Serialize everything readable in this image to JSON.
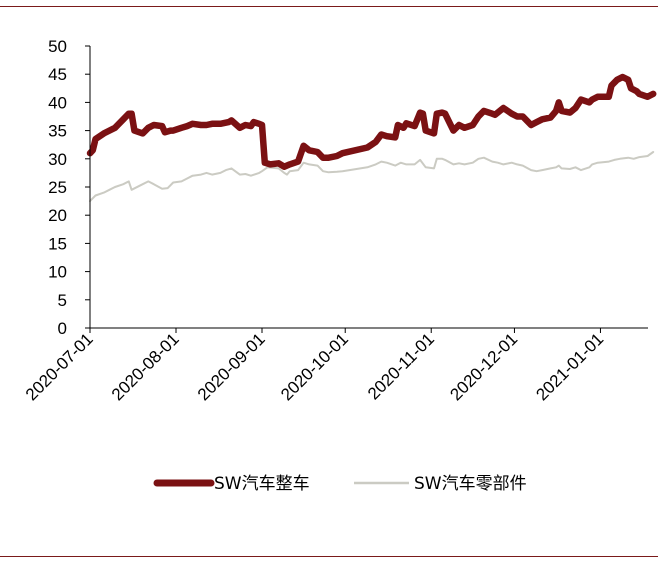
{
  "chart_data": {
    "type": "line",
    "title": "",
    "xlabel": "",
    "ylabel": "",
    "ylim": [
      0,
      50
    ],
    "yticks": [
      "0",
      "5",
      "10",
      "15",
      "20",
      "25",
      "30",
      "35",
      "40",
      "45",
      "50"
    ],
    "x_range": [
      "2020-07-01",
      "2021-01-20"
    ],
    "xticks": [
      "2020-07-01",
      "2020-08-01",
      "2020-09-01",
      "2020-10-01",
      "2020-11-01",
      "2020-12-01",
      "2021-01-01"
    ],
    "grid": false,
    "legend_position": "bottom",
    "series": [
      {
        "name": "SW汽车整车",
        "color": "#7b1113",
        "points": [
          [
            "2020-07-01",
            31.0
          ],
          [
            "2020-07-02",
            31.5
          ],
          [
            "2020-07-03",
            33.5
          ],
          [
            "2020-07-06",
            34.5
          ],
          [
            "2020-07-08",
            35.0
          ],
          [
            "2020-07-10",
            35.5
          ],
          [
            "2020-07-13",
            37.0
          ],
          [
            "2020-07-15",
            38.0
          ],
          [
            "2020-07-16",
            38.0
          ],
          [
            "2020-07-17",
            35.0
          ],
          [
            "2020-07-20",
            34.5
          ],
          [
            "2020-07-22",
            35.5
          ],
          [
            "2020-07-24",
            36.0
          ],
          [
            "2020-07-27",
            35.8
          ],
          [
            "2020-07-28",
            34.7
          ],
          [
            "2020-07-30",
            35.0
          ],
          [
            "2020-07-31",
            35.0
          ],
          [
            "2020-08-03",
            35.5
          ],
          [
            "2020-08-05",
            35.8
          ],
          [
            "2020-08-07",
            36.2
          ],
          [
            "2020-08-10",
            36.0
          ],
          [
            "2020-08-12",
            36.0
          ],
          [
            "2020-08-14",
            36.2
          ],
          [
            "2020-08-17",
            36.2
          ],
          [
            "2020-08-20",
            36.5
          ],
          [
            "2020-08-21",
            36.8
          ],
          [
            "2020-08-24",
            35.5
          ],
          [
            "2020-08-26",
            36.0
          ],
          [
            "2020-08-28",
            35.8
          ],
          [
            "2020-08-29",
            36.5
          ],
          [
            "2020-08-31",
            36.2
          ],
          [
            "2020-09-01",
            36.0
          ],
          [
            "2020-09-02",
            29.3
          ],
          [
            "2020-09-04",
            29.0
          ],
          [
            "2020-09-07",
            29.2
          ],
          [
            "2020-09-09",
            28.6
          ],
          [
            "2020-09-11",
            29.0
          ],
          [
            "2020-09-14",
            29.5
          ],
          [
            "2020-09-16",
            32.3
          ],
          [
            "2020-09-18",
            31.5
          ],
          [
            "2020-09-21",
            31.2
          ],
          [
            "2020-09-23",
            30.2
          ],
          [
            "2020-09-25",
            30.2
          ],
          [
            "2020-09-28",
            30.5
          ],
          [
            "2020-09-30",
            31.0
          ],
          [
            "2020-10-09",
            32.0
          ],
          [
            "2020-10-12",
            33.0
          ],
          [
            "2020-10-14",
            34.3
          ],
          [
            "2020-10-16",
            34.0
          ],
          [
            "2020-10-19",
            33.8
          ],
          [
            "2020-10-20",
            36.0
          ],
          [
            "2020-10-22",
            35.5
          ],
          [
            "2020-10-23",
            36.3
          ],
          [
            "2020-10-26",
            35.8
          ],
          [
            "2020-10-28",
            38.2
          ],
          [
            "2020-10-29",
            38.0
          ],
          [
            "2020-10-30",
            35.0
          ],
          [
            "2020-11-02",
            34.5
          ],
          [
            "2020-11-03",
            38.0
          ],
          [
            "2020-11-05",
            38.2
          ],
          [
            "2020-11-06",
            38.0
          ],
          [
            "2020-11-09",
            35.0
          ],
          [
            "2020-11-10",
            35.5
          ],
          [
            "2020-11-11",
            36.0
          ],
          [
            "2020-11-13",
            35.5
          ],
          [
            "2020-11-16",
            36.0
          ],
          [
            "2020-11-18",
            37.5
          ],
          [
            "2020-11-20",
            38.5
          ],
          [
            "2020-11-23",
            38.0
          ],
          [
            "2020-11-24",
            37.8
          ],
          [
            "2020-11-25",
            38.2
          ],
          [
            "2020-11-27",
            39.0
          ],
          [
            "2020-11-30",
            38.0
          ],
          [
            "2020-12-02",
            37.5
          ],
          [
            "2020-12-04",
            37.5
          ],
          [
            "2020-12-07",
            36.0
          ],
          [
            "2020-12-09",
            36.5
          ],
          [
            "2020-12-11",
            37.0
          ],
          [
            "2020-12-14",
            37.3
          ],
          [
            "2020-12-16",
            38.5
          ],
          [
            "2020-12-17",
            40.0
          ],
          [
            "2020-12-18",
            38.5
          ],
          [
            "2020-12-21",
            38.2
          ],
          [
            "2020-12-23",
            39.0
          ],
          [
            "2020-12-25",
            40.5
          ],
          [
            "2020-12-28",
            40.0
          ],
          [
            "2020-12-29",
            40.5
          ],
          [
            "2020-12-31",
            41.0
          ],
          [
            "2021-01-04",
            41.0
          ],
          [
            "2021-01-05",
            43.0
          ],
          [
            "2021-01-07",
            44.0
          ],
          [
            "2021-01-09",
            44.5
          ],
          [
            "2021-01-11",
            44.0
          ],
          [
            "2021-01-12",
            42.5
          ],
          [
            "2021-01-14",
            42.0
          ],
          [
            "2021-01-15",
            41.5
          ],
          [
            "2021-01-18",
            41.0
          ],
          [
            "2021-01-20",
            41.5
          ]
        ]
      },
      {
        "name": "SW汽车零部件",
        "color": "#cbcbc3",
        "points": [
          [
            "2020-07-01",
            22.5
          ],
          [
            "2020-07-03",
            23.5
          ],
          [
            "2020-07-06",
            24.0
          ],
          [
            "2020-07-08",
            24.5
          ],
          [
            "2020-07-10",
            25.0
          ],
          [
            "2020-07-13",
            25.5
          ],
          [
            "2020-07-15",
            26.0
          ],
          [
            "2020-07-16",
            24.5
          ],
          [
            "2020-07-20",
            25.5
          ],
          [
            "2020-07-22",
            26.0
          ],
          [
            "2020-07-24",
            25.5
          ],
          [
            "2020-07-27",
            24.7
          ],
          [
            "2020-07-29",
            24.8
          ],
          [
            "2020-07-31",
            25.8
          ],
          [
            "2020-08-03",
            26.0
          ],
          [
            "2020-08-05",
            26.5
          ],
          [
            "2020-08-07",
            27.0
          ],
          [
            "2020-08-10",
            27.2
          ],
          [
            "2020-08-12",
            27.5
          ],
          [
            "2020-08-14",
            27.2
          ],
          [
            "2020-08-17",
            27.5
          ],
          [
            "2020-08-19",
            28.0
          ],
          [
            "2020-08-21",
            28.3
          ],
          [
            "2020-08-24",
            27.2
          ],
          [
            "2020-08-26",
            27.3
          ],
          [
            "2020-08-28",
            27.0
          ],
          [
            "2020-08-31",
            27.5
          ],
          [
            "2020-09-01",
            27.8
          ],
          [
            "2020-09-03",
            28.5
          ],
          [
            "2020-09-07",
            28.3
          ],
          [
            "2020-09-09",
            27.5
          ],
          [
            "2020-09-10",
            27.2
          ],
          [
            "2020-09-11",
            27.8
          ],
          [
            "2020-09-14",
            28.0
          ],
          [
            "2020-09-16",
            29.3
          ],
          [
            "2020-09-18",
            29.0
          ],
          [
            "2020-09-21",
            28.8
          ],
          [
            "2020-09-23",
            27.8
          ],
          [
            "2020-09-25",
            27.6
          ],
          [
            "2020-09-28",
            27.7
          ],
          [
            "2020-09-30",
            27.8
          ],
          [
            "2020-10-09",
            28.5
          ],
          [
            "2020-10-12",
            29.0
          ],
          [
            "2020-10-14",
            29.5
          ],
          [
            "2020-10-16",
            29.3
          ],
          [
            "2020-10-19",
            28.8
          ],
          [
            "2020-10-21",
            29.3
          ],
          [
            "2020-10-23",
            29.0
          ],
          [
            "2020-10-26",
            29.0
          ],
          [
            "2020-10-28",
            29.8
          ],
          [
            "2020-10-30",
            28.5
          ],
          [
            "2020-11-02",
            28.3
          ],
          [
            "2020-11-03",
            30.0
          ],
          [
            "2020-11-05",
            30.0
          ],
          [
            "2020-11-06",
            29.8
          ],
          [
            "2020-11-09",
            29.0
          ],
          [
            "2020-11-11",
            29.2
          ],
          [
            "2020-11-13",
            29.0
          ],
          [
            "2020-11-16",
            29.3
          ],
          [
            "2020-11-18",
            30.0
          ],
          [
            "2020-11-20",
            30.2
          ],
          [
            "2020-11-23",
            29.5
          ],
          [
            "2020-11-25",
            29.3
          ],
          [
            "2020-11-27",
            29.0
          ],
          [
            "2020-11-30",
            29.3
          ],
          [
            "2020-12-02",
            29.0
          ],
          [
            "2020-12-04",
            28.8
          ],
          [
            "2020-12-07",
            28.0
          ],
          [
            "2020-12-09",
            27.8
          ],
          [
            "2020-12-11",
            28.0
          ],
          [
            "2020-12-14",
            28.3
          ],
          [
            "2020-12-16",
            28.5
          ],
          [
            "2020-12-17",
            28.8
          ],
          [
            "2020-12-18",
            28.3
          ],
          [
            "2020-12-21",
            28.2
          ],
          [
            "2020-12-23",
            28.5
          ],
          [
            "2020-12-25",
            28.0
          ],
          [
            "2020-12-28",
            28.5
          ],
          [
            "2020-12-29",
            29.0
          ],
          [
            "2020-12-31",
            29.3
          ],
          [
            "2021-01-04",
            29.5
          ],
          [
            "2021-01-06",
            29.8
          ],
          [
            "2021-01-08",
            30.0
          ],
          [
            "2021-01-11",
            30.2
          ],
          [
            "2021-01-13",
            30.0
          ],
          [
            "2021-01-15",
            30.3
          ],
          [
            "2021-01-18",
            30.5
          ],
          [
            "2021-01-20",
            31.2
          ]
        ]
      }
    ]
  }
}
